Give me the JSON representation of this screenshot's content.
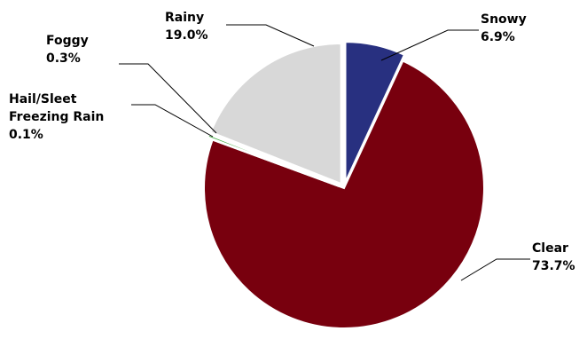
{
  "chart_data": {
    "type": "pie",
    "title": "",
    "exploded": true,
    "start_angle_deg": 0,
    "direction": "clockwise",
    "slices": [
      {
        "label": "Snowy",
        "lines": [
          "Snowy"
        ],
        "value": 6.9,
        "value_text": "6.9%",
        "color": "#283080"
      },
      {
        "label": "Clear",
        "lines": [
          "Clear"
        ],
        "value": 73.7,
        "value_text": "73.7%",
        "color": "#78000e"
      },
      {
        "label": "Hail/Sleet Freezing Rain",
        "lines": [
          "Hail/Sleet",
          "Freezing Rain"
        ],
        "value": 0.1,
        "value_text": "0.1%",
        "color": "#111111"
      },
      {
        "label": "Foggy",
        "lines": [
          "Foggy"
        ],
        "value": 0.3,
        "value_text": "0.3%",
        "color": "#3aaa3a"
      },
      {
        "label": "Rainy",
        "lines": [
          "Rainy"
        ],
        "value": 19.0,
        "value_text": "19.0%",
        "color": "#d8d8d8"
      }
    ]
  }
}
